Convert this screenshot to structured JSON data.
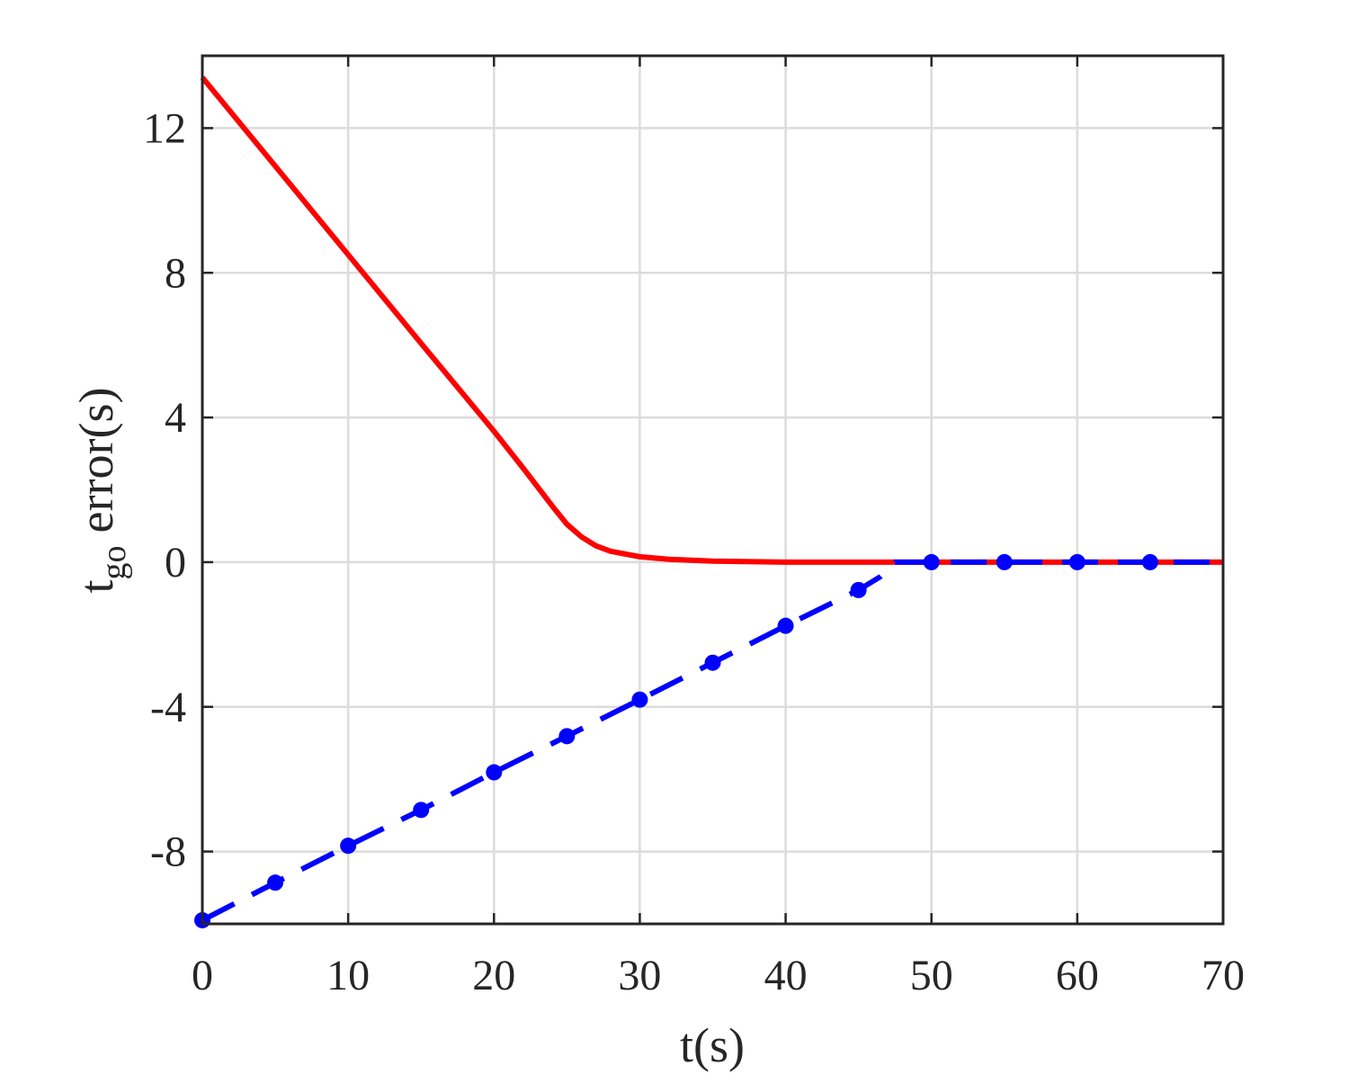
{
  "chart_data": {
    "type": "line",
    "xlabel": "t(s)",
    "ylabel": {
      "main": "t",
      "subscript": "go",
      "rest": "error(s)"
    },
    "xlim": [
      0,
      70
    ],
    "xticks": [
      0,
      10,
      20,
      30,
      40,
      50,
      60,
      70
    ],
    "ylim": [
      -10,
      14
    ],
    "yticks": [
      -8,
      -4,
      0,
      4,
      8,
      12
    ],
    "grid": true,
    "series": [
      {
        "color": "#ff0000",
        "style": "solid",
        "marker": false,
        "x": [
          0,
          5,
          10,
          15,
          20,
          22,
          24,
          25,
          26,
          27,
          28,
          30,
          32,
          35,
          40,
          45,
          50,
          55,
          60,
          65,
          70
        ],
        "values": [
          13.4,
          10.95,
          8.5,
          6.05,
          3.62,
          2.6,
          1.55,
          1.05,
          0.7,
          0.45,
          0.3,
          0.15,
          0.08,
          0.03,
          0,
          0,
          0,
          0,
          0,
          0,
          0
        ]
      },
      {
        "color": "#0000ff",
        "style": "dashed",
        "marker": true,
        "x": [
          0,
          5,
          10,
          15,
          20,
          25,
          30,
          35,
          40,
          45,
          46.5,
          47.5,
          50,
          55,
          60,
          65,
          70
        ],
        "values": [
          -9.9,
          -8.86,
          -7.84,
          -6.85,
          -5.81,
          -4.81,
          -3.8,
          -2.78,
          -1.76,
          -0.77,
          -0.4,
          0,
          0,
          0,
          0,
          0,
          0
        ]
      }
    ]
  }
}
